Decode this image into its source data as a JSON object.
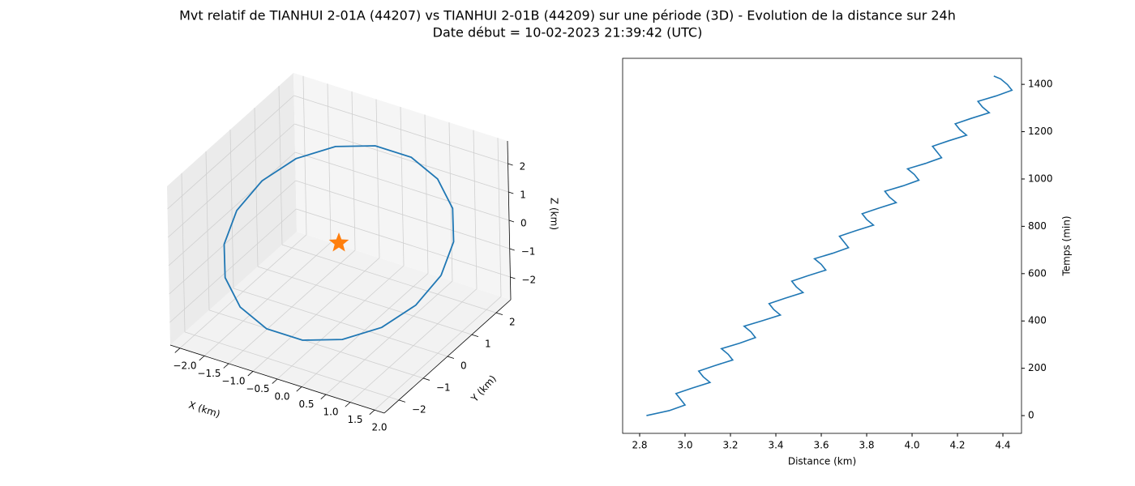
{
  "title": "Mvt relatif de TIANHUI 2-01A (44207) vs TIANHUI 2-01B (44209) sur une période (3D) - Evolution de la distance sur 24h",
  "subtitle": "Date début = 10-02-2023 21:39:42 (UTC)",
  "chart_data": [
    {
      "type": "line3d",
      "xlabel": "X (km)",
      "ylabel": "Y (km)",
      "zlabel": "Z (km)",
      "xlim": [
        -2.2,
        2.2
      ],
      "ylim": [
        -2.6,
        2.6
      ],
      "zlim": [
        -2.8,
        2.8
      ],
      "xticks": [
        {
          "value": -2,
          "label": "−2.0"
        },
        {
          "value": -1.5,
          "label": "−1.5"
        },
        {
          "value": -1,
          "label": "−1.0"
        },
        {
          "value": -0.5,
          "label": "−0.5"
        },
        {
          "value": 0,
          "label": "0.0"
        },
        0.5,
        {
          "value": 1,
          "label": "1.0"
        },
        1.5,
        {
          "value": 2,
          "label": "2.0"
        }
      ],
      "yticks": [
        {
          "value": -2,
          "label": "−2"
        },
        {
          "value": -1,
          "label": "−1"
        },
        0,
        1,
        2
      ],
      "zticks": [
        {
          "value": -2,
          "label": "−2"
        },
        {
          "value": -1,
          "label": "−1"
        },
        0,
        1,
        2
      ],
      "grid": true,
      "series": [
        {
          "color": "#1f77b4",
          "x": [
            2.1,
            1.97,
            1.61,
            1.05,
            0.37,
            -0.37,
            -1.05,
            -1.61,
            -1.97,
            -2.1,
            -1.97,
            -1.61,
            -1.05,
            -0.37,
            0.37,
            1.05,
            1.61,
            1.97,
            2.1
          ],
          "y": [
            0,
            0.79,
            1.48,
            1.99,
            2.27,
            2.27,
            1.99,
            1.48,
            0.79,
            0,
            -0.79,
            -1.48,
            -1.99,
            -2.27,
            -2.27,
            -1.99,
            -1.48,
            -0.79,
            0
          ],
          "z": [
            0,
            0.51,
            0.96,
            1.3,
            1.48,
            1.48,
            1.3,
            0.96,
            0.51,
            0,
            -0.51,
            -0.96,
            -1.3,
            -1.48,
            -1.48,
            -1.3,
            -0.96,
            -0.51,
            0
          ]
        },
        {
          "color": "#ff7f0e",
          "marker": "star",
          "x": [
            0
          ],
          "y": [
            0
          ],
          "z": [
            0
          ]
        }
      ]
    },
    {
      "type": "line",
      "xlabel": "Distance (km)",
      "ylabel": "Temps (min)",
      "yaxis_position": "right",
      "xlim": [
        2.725,
        4.482
      ],
      "ylim": [
        -75,
        1510
      ],
      "xticks": [
        2.8,
        {
          "value": 3,
          "label": "3.0"
        },
        3.2,
        3.4,
        3.6,
        3.8,
        {
          "value": 4,
          "label": "4.0"
        },
        4.2,
        4.4
      ],
      "yticks": [
        0,
        200,
        400,
        600,
        800,
        1000,
        1200,
        1400
      ],
      "grid": false,
      "series": [
        {
          "color": "#1f77b4",
          "x": [
            2.83,
            2.93,
            3.0,
            2.98,
            2.96,
            3.03,
            3.11,
            3.08,
            3.06,
            3.13,
            3.21,
            3.19,
            3.16,
            3.24,
            3.31,
            3.29,
            3.26,
            3.34,
            3.42,
            3.39,
            3.37,
            3.44,
            3.52,
            3.49,
            3.47,
            3.54,
            3.62,
            3.6,
            3.57,
            3.65,
            3.72,
            3.7,
            3.68,
            3.75,
            3.83,
            3.8,
            3.78,
            3.85,
            3.93,
            3.9,
            3.88,
            3.96,
            4.03,
            4.01,
            3.98,
            4.06,
            4.13,
            4.11,
            4.09,
            4.16,
            4.24,
            4.21,
            4.19,
            4.26,
            4.34,
            4.31,
            4.29,
            4.37,
            4.44,
            4.42,
            4.39,
            4.36
          ],
          "values": [
            0,
            21,
            45,
            69,
            93,
            116,
            140,
            164,
            188,
            211,
            235,
            259,
            283,
            306,
            330,
            354,
            378,
            401,
            425,
            449,
            473,
            496,
            520,
            544,
            568,
            591,
            615,
            639,
            663,
            686,
            710,
            734,
            758,
            781,
            805,
            829,
            853,
            876,
            900,
            924,
            948,
            971,
            995,
            1019,
            1043,
            1066,
            1090,
            1114,
            1138,
            1161,
            1185,
            1209,
            1233,
            1256,
            1280,
            1304,
            1328,
            1351,
            1375,
            1399,
            1423,
            1435
          ]
        }
      ]
    }
  ]
}
